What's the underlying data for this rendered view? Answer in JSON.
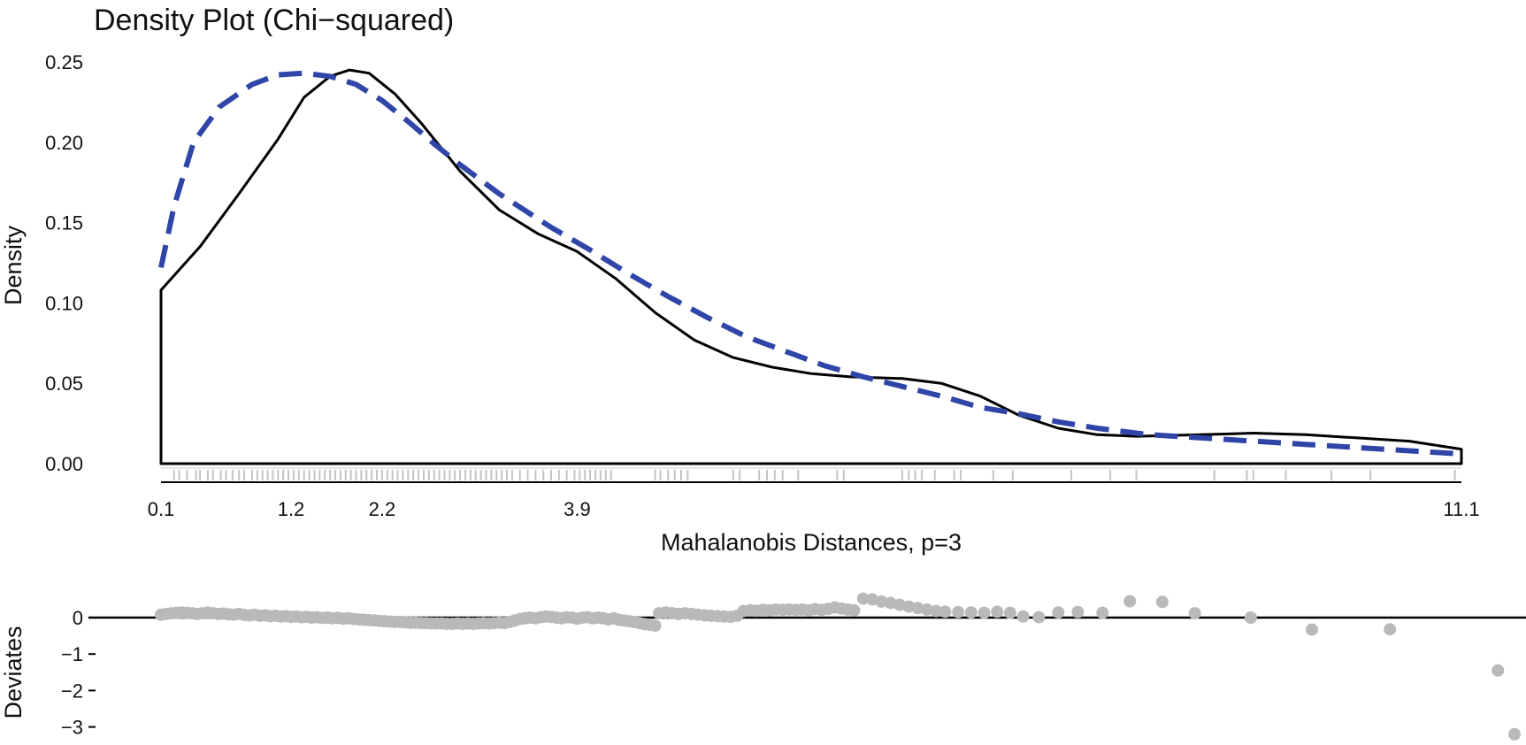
{
  "chart_data": [
    {
      "type": "line",
      "title": "Density Plot (Chi−squared)",
      "xlabel": "Mahalanobis Distances, p=3",
      "ylabel": "Density",
      "xlim": [
        0.1,
        11.1
      ],
      "ylim": [
        0,
        0.25
      ],
      "x_tick_labels": [
        "0.1",
        "1.2",
        "2.2",
        "3.9",
        "11.1"
      ],
      "y_tick_labels": [
        "0.00",
        "0.05",
        "0.10",
        "0.15",
        "0.20",
        "0.25"
      ],
      "x_axis_note": "x axis uses a non-linear (rank-based) scale; tick positions follow the quantiles of the observed distances",
      "grid": false,
      "legend": "none",
      "series": [
        {
          "style": "solid",
          "color": "#000000",
          "fill": "#ffffff",
          "points": [
            [
              0.0,
              0.108
            ],
            [
              0.03,
              0.135
            ],
            [
              0.06,
              0.168
            ],
            [
              0.09,
              0.202
            ],
            [
              0.11,
              0.228
            ],
            [
              0.13,
              0.241
            ],
            [
              0.145,
              0.245
            ],
            [
              0.16,
              0.243
            ],
            [
              0.18,
              0.23
            ],
            [
              0.2,
              0.212
            ],
            [
              0.23,
              0.182
            ],
            [
              0.26,
              0.158
            ],
            [
              0.29,
              0.143
            ],
            [
              0.32,
              0.132
            ],
            [
              0.35,
              0.115
            ],
            [
              0.38,
              0.094
            ],
            [
              0.41,
              0.077
            ],
            [
              0.44,
              0.066
            ],
            [
              0.47,
              0.06
            ],
            [
              0.5,
              0.056
            ],
            [
              0.53,
              0.054
            ],
            [
              0.57,
              0.053
            ],
            [
              0.6,
              0.05
            ],
            [
              0.63,
              0.042
            ],
            [
              0.66,
              0.03
            ],
            [
              0.69,
              0.022
            ],
            [
              0.72,
              0.018
            ],
            [
              0.75,
              0.017
            ],
            [
              0.8,
              0.018
            ],
            [
              0.84,
              0.019
            ],
            [
              0.88,
              0.018
            ],
            [
              0.92,
              0.016
            ],
            [
              0.96,
              0.014
            ],
            [
              1.0,
              0.009
            ]
          ]
        },
        {
          "style": "dashed",
          "color": "#2f45a8",
          "points": [
            [
              0.0,
              0.122
            ],
            [
              0.01,
              0.16
            ],
            [
              0.025,
              0.2
            ],
            [
              0.045,
              0.222
            ],
            [
              0.07,
              0.236
            ],
            [
              0.09,
              0.242
            ],
            [
              0.11,
              0.243
            ],
            [
              0.13,
              0.241
            ],
            [
              0.15,
              0.236
            ],
            [
              0.17,
              0.226
            ],
            [
              0.19,
              0.213
            ],
            [
              0.21,
              0.199
            ],
            [
              0.23,
              0.186
            ],
            [
              0.26,
              0.168
            ],
            [
              0.3,
              0.147
            ],
            [
              0.33,
              0.133
            ],
            [
              0.36,
              0.118
            ],
            [
              0.39,
              0.104
            ],
            [
              0.42,
              0.091
            ],
            [
              0.45,
              0.079
            ],
            [
              0.48,
              0.07
            ],
            [
              0.51,
              0.061
            ],
            [
              0.54,
              0.054
            ],
            [
              0.57,
              0.048
            ],
            [
              0.6,
              0.042
            ],
            [
              0.63,
              0.035
            ],
            [
              0.66,
              0.031
            ],
            [
              0.69,
              0.026
            ],
            [
              0.72,
              0.022
            ],
            [
              0.76,
              0.018
            ],
            [
              0.8,
              0.016
            ],
            [
              0.84,
              0.014
            ],
            [
              0.88,
              0.012
            ],
            [
              0.92,
              0.01
            ],
            [
              0.96,
              0.008
            ],
            [
              1.0,
              0.006
            ]
          ]
        }
      ],
      "rug": {
        "color": "#c4c4c4",
        "positions": [
          0.01,
          0.014,
          0.02,
          0.027,
          0.03,
          0.036,
          0.04,
          0.046,
          0.05,
          0.055,
          0.06,
          0.064,
          0.07,
          0.074,
          0.078,
          0.082,
          0.086,
          0.09,
          0.094,
          0.098,
          0.102,
          0.106,
          0.11,
          0.114,
          0.118,
          0.122,
          0.126,
          0.13,
          0.134,
          0.138,
          0.142,
          0.146,
          0.15,
          0.154,
          0.158,
          0.162,
          0.166,
          0.17,
          0.174,
          0.178,
          0.182,
          0.186,
          0.19,
          0.194,
          0.198,
          0.202,
          0.206,
          0.21,
          0.214,
          0.218,
          0.222,
          0.226,
          0.23,
          0.234,
          0.238,
          0.242,
          0.246,
          0.25,
          0.254,
          0.258,
          0.262,
          0.266,
          0.27,
          0.276,
          0.282,
          0.288,
          0.294,
          0.3,
          0.306,
          0.312,
          0.318,
          0.322,
          0.326,
          0.33,
          0.334,
          0.338,
          0.342,
          0.346,
          0.38,
          0.384,
          0.39,
          0.395,
          0.4,
          0.405,
          0.44,
          0.445,
          0.46,
          0.466,
          0.472,
          0.478,
          0.49,
          0.52,
          0.525,
          0.57,
          0.575,
          0.58,
          0.585,
          0.595,
          0.61,
          0.615,
          0.64,
          0.655,
          0.7,
          0.73,
          0.75,
          0.81,
          0.835,
          0.84,
          0.865,
          0.9,
          0.93,
          0.995
        ]
      }
    },
    {
      "type": "scatter",
      "ylabel": "Deviates",
      "y_tick_labels": [
        "0",
        "−1",
        "−2",
        "−3"
      ],
      "ylim": [
        -3.3,
        0.6
      ],
      "reference_line_y": 0,
      "point_color": "#b9b9b9",
      "points": [
        [
          0.0,
          0.08
        ],
        [
          0.004,
          0.1
        ],
        [
          0.008,
          0.12
        ],
        [
          0.012,
          0.13
        ],
        [
          0.016,
          0.14
        ],
        [
          0.02,
          0.13
        ],
        [
          0.024,
          0.12
        ],
        [
          0.028,
          0.1
        ],
        [
          0.032,
          0.12
        ],
        [
          0.036,
          0.14
        ],
        [
          0.04,
          0.12
        ],
        [
          0.044,
          0.1
        ],
        [
          0.048,
          0.11
        ],
        [
          0.052,
          0.09
        ],
        [
          0.056,
          0.08
        ],
        [
          0.06,
          0.1
        ],
        [
          0.064,
          0.07
        ],
        [
          0.068,
          0.06
        ],
        [
          0.072,
          0.08
        ],
        [
          0.076,
          0.05
        ],
        [
          0.08,
          0.06
        ],
        [
          0.084,
          0.04
        ],
        [
          0.088,
          0.05
        ],
        [
          0.092,
          0.03
        ],
        [
          0.096,
          0.04
        ],
        [
          0.1,
          0.02
        ],
        [
          0.104,
          0.03
        ],
        [
          0.108,
          0.01
        ],
        [
          0.112,
          0.02
        ],
        [
          0.116,
          0.0
        ],
        [
          0.12,
          0.01
        ],
        [
          0.124,
          -0.01
        ],
        [
          0.128,
          0.0
        ],
        [
          0.132,
          -0.02
        ],
        [
          0.136,
          -0.01
        ],
        [
          0.14,
          -0.03
        ],
        [
          0.144,
          -0.02
        ],
        [
          0.148,
          -0.04
        ],
        [
          0.152,
          -0.05
        ],
        [
          0.156,
          -0.06
        ],
        [
          0.16,
          -0.07
        ],
        [
          0.164,
          -0.08
        ],
        [
          0.168,
          -0.09
        ],
        [
          0.172,
          -0.1
        ],
        [
          0.176,
          -0.11
        ],
        [
          0.18,
          -0.12
        ],
        [
          0.184,
          -0.12
        ],
        [
          0.188,
          -0.13
        ],
        [
          0.192,
          -0.14
        ],
        [
          0.196,
          -0.14
        ],
        [
          0.2,
          -0.15
        ],
        [
          0.204,
          -0.15
        ],
        [
          0.208,
          -0.16
        ],
        [
          0.212,
          -0.16
        ],
        [
          0.216,
          -0.16
        ],
        [
          0.22,
          -0.17
        ],
        [
          0.224,
          -0.17
        ],
        [
          0.228,
          -0.16
        ],
        [
          0.232,
          -0.17
        ],
        [
          0.236,
          -0.16
        ],
        [
          0.24,
          -0.17
        ],
        [
          0.244,
          -0.16
        ],
        [
          0.248,
          -0.15
        ],
        [
          0.252,
          -0.16
        ],
        [
          0.256,
          -0.15
        ],
        [
          0.26,
          -0.14
        ],
        [
          0.264,
          -0.15
        ],
        [
          0.268,
          -0.12
        ],
        [
          0.272,
          -0.08
        ],
        [
          0.276,
          -0.04
        ],
        [
          0.28,
          -0.02
        ],
        [
          0.284,
          0.0
        ],
        [
          0.288,
          -0.02
        ],
        [
          0.292,
          0.01
        ],
        [
          0.296,
          0.03
        ],
        [
          0.3,
          0.02
        ],
        [
          0.304,
          0.0
        ],
        [
          0.308,
          -0.02
        ],
        [
          0.312,
          0.01
        ],
        [
          0.316,
          0.0
        ],
        [
          0.32,
          -0.03
        ],
        [
          0.324,
          0.0
        ],
        [
          0.328,
          0.01
        ],
        [
          0.332,
          -0.02
        ],
        [
          0.336,
          0.0
        ],
        [
          0.34,
          -0.02
        ],
        [
          0.344,
          -0.05
        ],
        [
          0.348,
          -0.02
        ],
        [
          0.352,
          -0.06
        ],
        [
          0.356,
          -0.08
        ],
        [
          0.36,
          -0.1
        ],
        [
          0.364,
          -0.12
        ],
        [
          0.368,
          -0.15
        ],
        [
          0.372,
          -0.18
        ],
        [
          0.376,
          -0.2
        ],
        [
          0.38,
          -0.22
        ],
        [
          0.383,
          0.12
        ],
        [
          0.388,
          0.14
        ],
        [
          0.393,
          0.12
        ],
        [
          0.398,
          0.1
        ],
        [
          0.403,
          0.12
        ],
        [
          0.408,
          0.1
        ],
        [
          0.413,
          0.08
        ],
        [
          0.418,
          0.06
        ],
        [
          0.423,
          0.05
        ],
        [
          0.428,
          0.04
        ],
        [
          0.433,
          0.03
        ],
        [
          0.438,
          0.02
        ],
        [
          0.443,
          0.05
        ],
        [
          0.448,
          0.18
        ],
        [
          0.453,
          0.2
        ],
        [
          0.458,
          0.19
        ],
        [
          0.463,
          0.21
        ],
        [
          0.468,
          0.2
        ],
        [
          0.473,
          0.22
        ],
        [
          0.478,
          0.21
        ],
        [
          0.483,
          0.22
        ],
        [
          0.488,
          0.21
        ],
        [
          0.493,
          0.22
        ],
        [
          0.498,
          0.2
        ],
        [
          0.503,
          0.23
        ],
        [
          0.508,
          0.21
        ],
        [
          0.513,
          0.24
        ],
        [
          0.518,
          0.28
        ],
        [
          0.523,
          0.25
        ],
        [
          0.528,
          0.22
        ],
        [
          0.533,
          0.2
        ],
        [
          0.54,
          0.52
        ],
        [
          0.547,
          0.5
        ],
        [
          0.554,
          0.44
        ],
        [
          0.561,
          0.4
        ],
        [
          0.568,
          0.35
        ],
        [
          0.575,
          0.3
        ],
        [
          0.582,
          0.26
        ],
        [
          0.589,
          0.22
        ],
        [
          0.596,
          0.18
        ],
        [
          0.603,
          0.16
        ],
        [
          0.613,
          0.15
        ],
        [
          0.623,
          0.14
        ],
        [
          0.633,
          0.13
        ],
        [
          0.643,
          0.16
        ],
        [
          0.653,
          0.13
        ],
        [
          0.663,
          0.03
        ],
        [
          0.675,
          0.01
        ],
        [
          0.69,
          0.14
        ],
        [
          0.705,
          0.15
        ],
        [
          0.724,
          0.13
        ],
        [
          0.745,
          0.45
        ],
        [
          0.77,
          0.43
        ],
        [
          0.795,
          0.12
        ],
        [
          0.838,
          0.0
        ],
        [
          0.885,
          -0.33
        ],
        [
          0.945,
          -0.32
        ],
        [
          1.028,
          -1.45
        ],
        [
          1.18,
          -3.2
        ]
      ]
    }
  ]
}
